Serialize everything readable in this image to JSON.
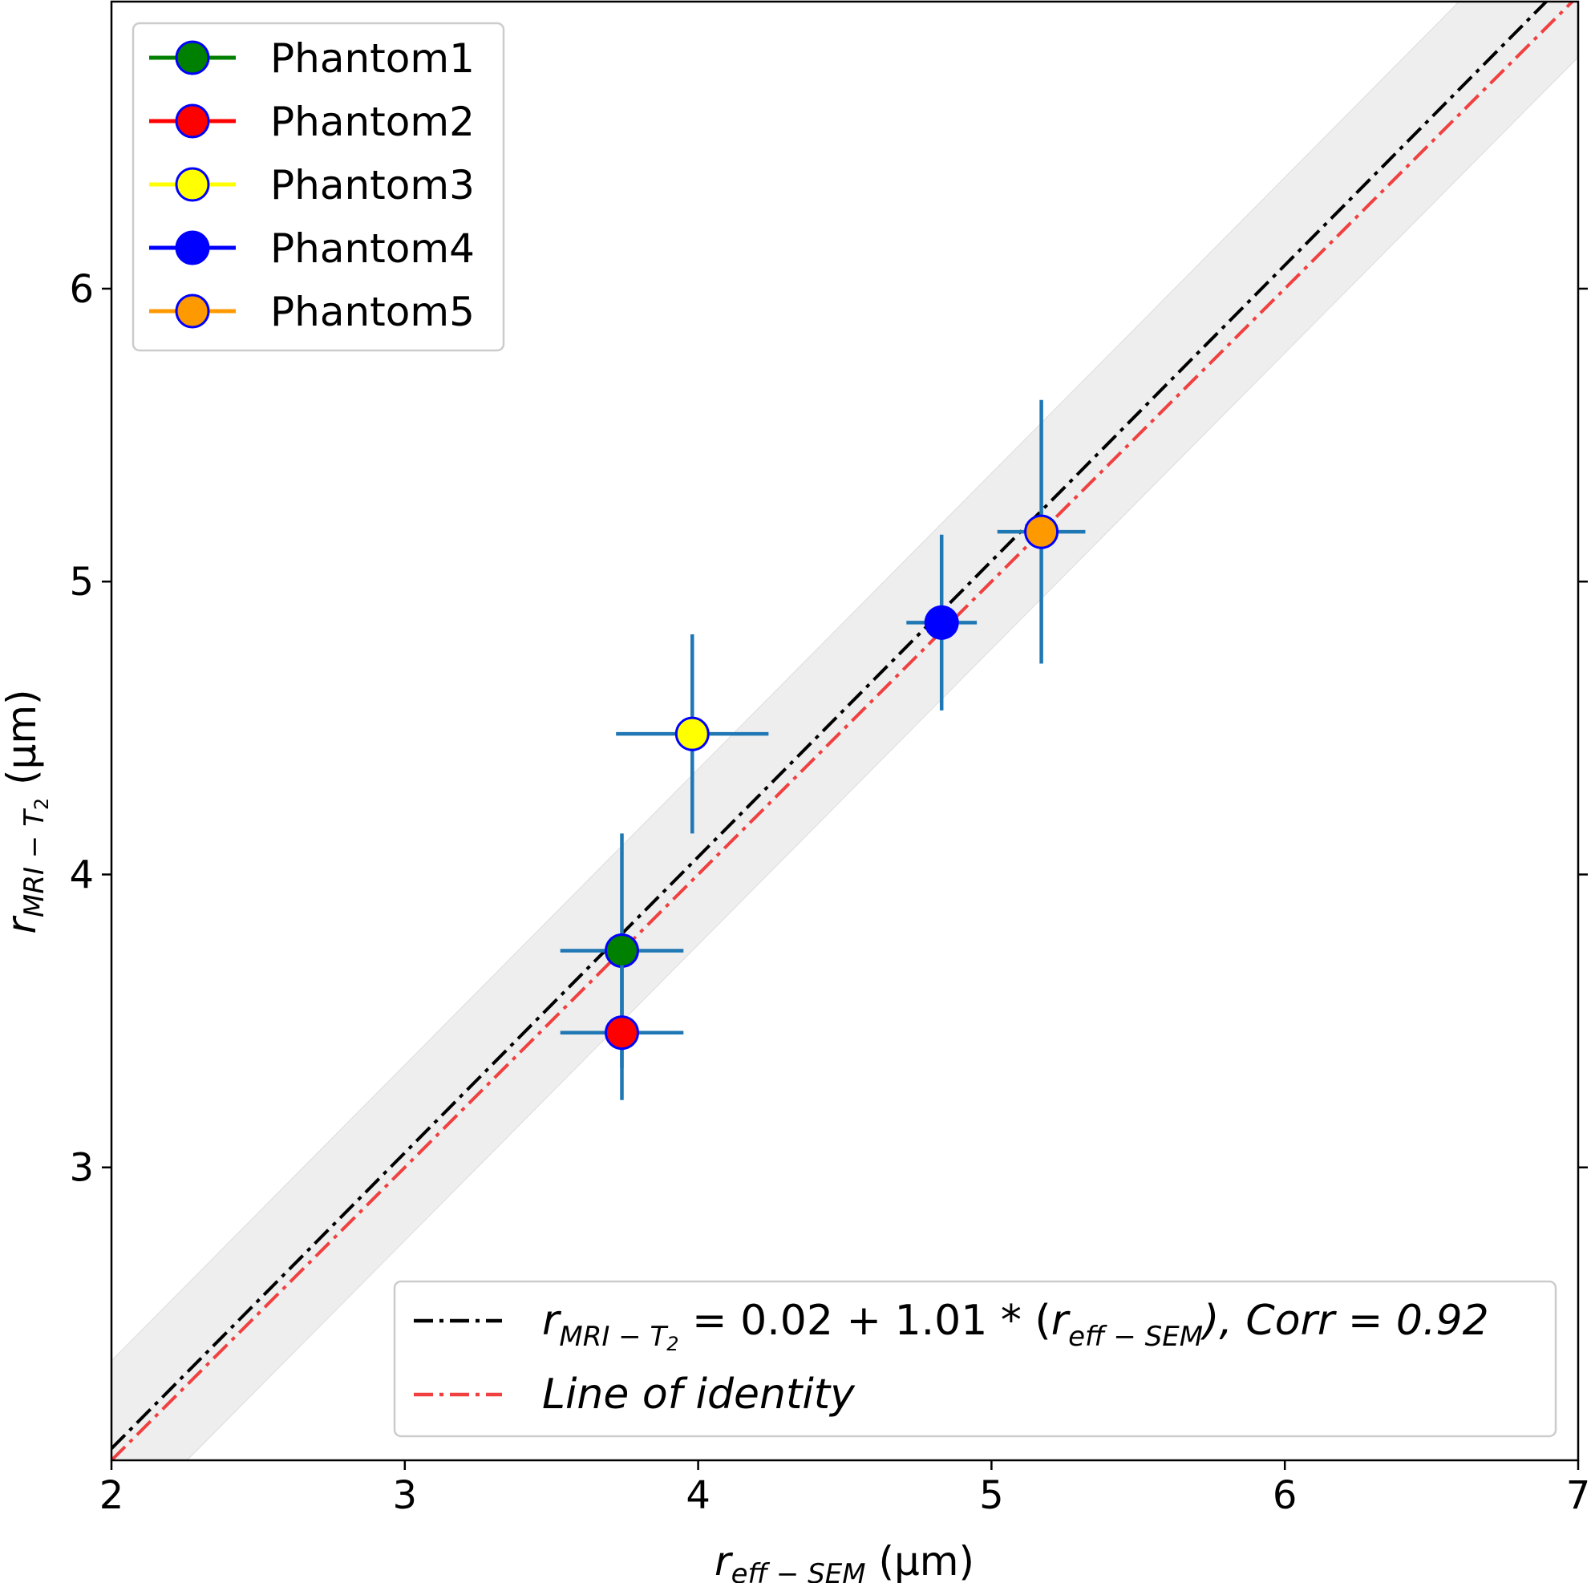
{
  "chart_data": {
    "type": "scatter",
    "xlabel": {
      "main": "r",
      "sub": "eff − SEM",
      "unit": "(μm)"
    },
    "ylabel": {
      "main": "r",
      "sub": "MRI − T",
      "subsub": "2",
      "unit": "(μm)"
    },
    "xlim": [
      2,
      7
    ],
    "ylim": [
      2.0,
      6.98
    ],
    "x_ticks": [
      "2",
      "3",
      "4",
      "5",
      "6",
      "7"
    ],
    "y_ticks": [
      "3",
      "4",
      "5",
      "6"
    ],
    "grid": false,
    "legend_points_placement": "upper-left",
    "legend_lines_placement": "lower-right",
    "errorbar_color": "#1f77b4",
    "marker_edge_color": "#0000ff",
    "series": [
      {
        "name": "Phantom1",
        "color": "#008000",
        "x": 3.74,
        "y": 3.74,
        "xerr": 0.21,
        "yerr": 0.4
      },
      {
        "name": "Phantom2",
        "color": "#ff0000",
        "x": 3.74,
        "y": 3.46,
        "xerr": 0.21,
        "yerr": 0.23
      },
      {
        "name": "Phantom3",
        "color": "#ffff00",
        "x": 3.98,
        "y": 4.48,
        "xerr": 0.26,
        "yerr": 0.34
      },
      {
        "name": "Phantom4",
        "color": "#0000ff",
        "x": 4.83,
        "y": 4.86,
        "xerr": 0.12,
        "yerr": 0.3
      },
      {
        "name": "Phantom5",
        "color": "#ff9900",
        "x": 5.17,
        "y": 5.17,
        "xerr": 0.15,
        "yerr": 0.45
      }
    ],
    "fit": {
      "intercept": 0.02,
      "slope": 1.01,
      "color": "#000000",
      "band_color": "#eeeeee",
      "band_halfwidth": 0.3,
      "label": {
        "lhs_main": "r",
        "lhs_sub": "MRI − T",
        "lhs_subsub": "2",
        "mid": " = 0.02 + 1.01 * (",
        "rhs_main": "r",
        "rhs_sub": "eff − SEM",
        "tail": "), Corr = 0.92"
      }
    },
    "identity": {
      "label": "Line of identity",
      "color": "#f04040"
    }
  }
}
